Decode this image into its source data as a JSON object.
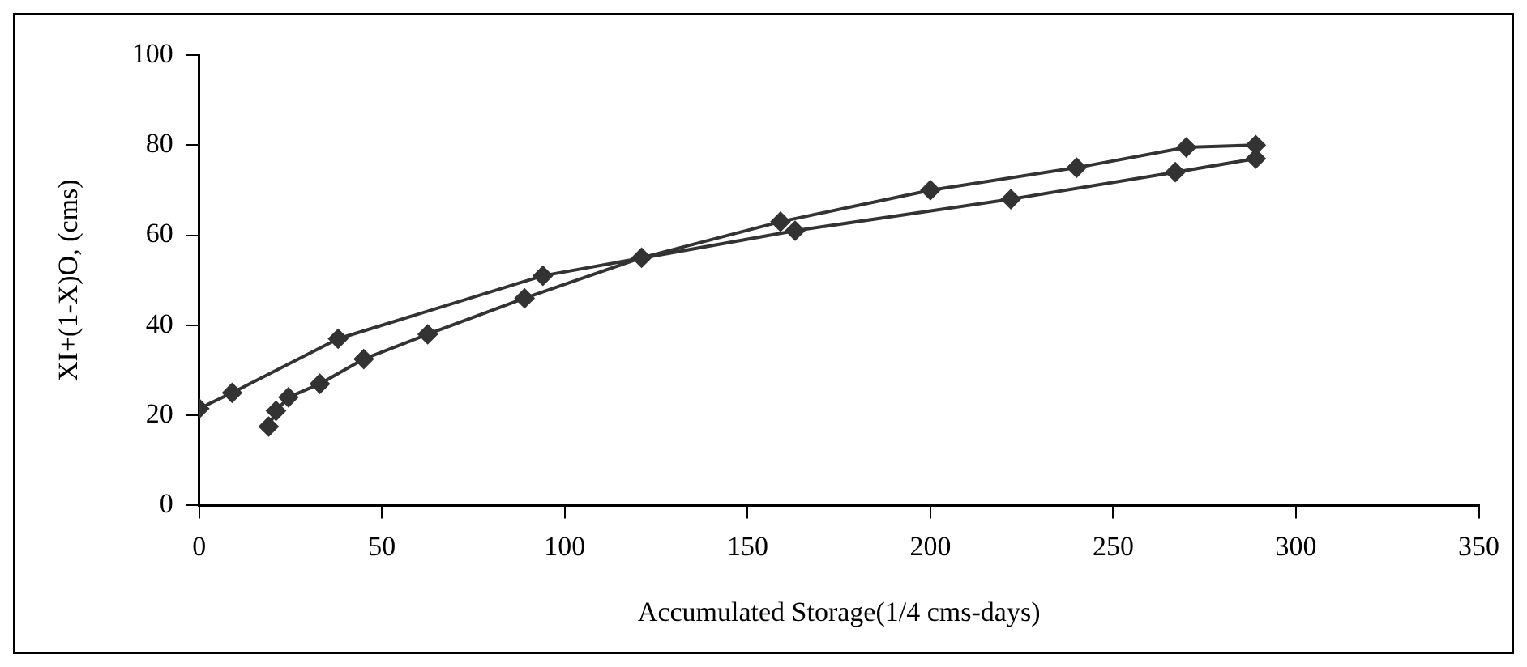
{
  "chart_data": {
    "type": "line",
    "xlabel": "Accumulated Storage(1/4 cms-days)",
    "ylabel": "XI+(1-X)O, (cms)",
    "x": [
      19,
      21,
      24.4,
      33,
      45,
      62.5,
      89,
      121,
      159,
      200,
      240,
      270,
      289,
      289,
      267,
      222,
      163,
      94,
      38,
      9,
      0
    ],
    "values": [
      17.5,
      21,
      24,
      27,
      32.5,
      38,
      46,
      55,
      63,
      70,
      75,
      79.5,
      80,
      77,
      74,
      68,
      61,
      51,
      37,
      25,
      21.5
    ],
    "color": "#333333",
    "marker": "diamond",
    "line_style": "solid",
    "grid": false,
    "legend": false,
    "xlim": [
      0,
      350
    ],
    "xticks": [
      0,
      50,
      100,
      150,
      200,
      250,
      300,
      350
    ],
    "ylim": [
      0,
      100
    ],
    "yticks": [
      0,
      20,
      40,
      60,
      80,
      100
    ]
  }
}
